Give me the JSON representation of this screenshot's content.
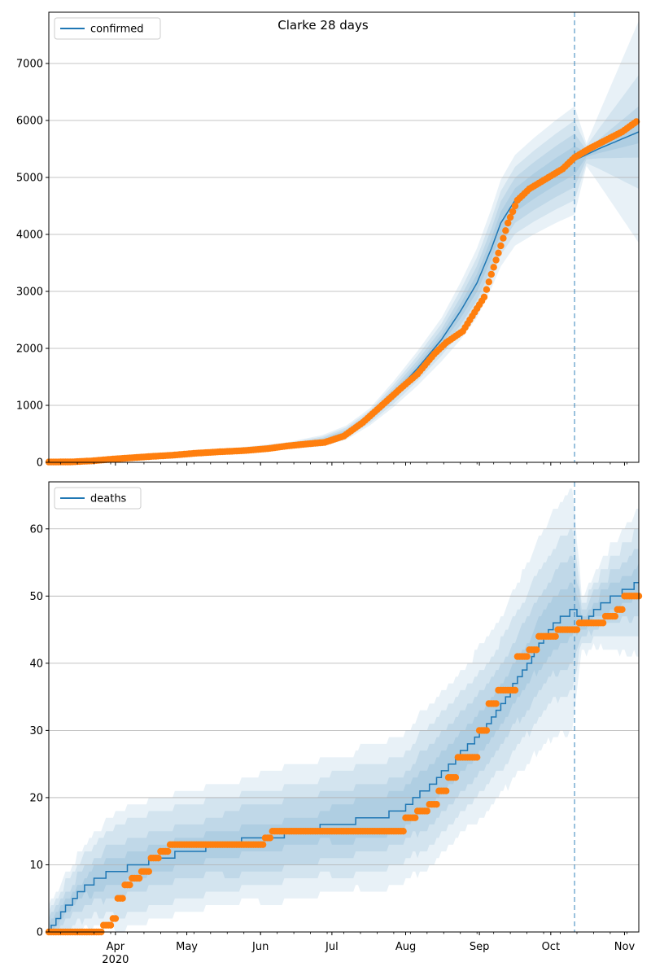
{
  "figure": {
    "title": "Clarke 28 days"
  },
  "chart_data": [
    {
      "type": "line",
      "title": "Clarke 28 days",
      "legend": {
        "label": "confirmed",
        "placement": "top-left"
      },
      "grid": "horizontal",
      "x_domain": [
        "2020-03-04",
        "2020-11-07"
      ],
      "ylim": [
        0,
        7900
      ],
      "yticks": [
        0,
        1000,
        2000,
        3000,
        4000,
        5000,
        6000,
        7000
      ],
      "vline_date": "2020-10-11",
      "colors": {
        "model": "#1f77b4",
        "observed": "#ff7f0e",
        "band": "#1f77b4"
      },
      "model": [
        [
          "2020-03-04",
          20
        ],
        [
          "2020-03-24",
          50
        ],
        [
          "2020-04-13",
          95
        ],
        [
          "2020-05-03",
          150
        ],
        [
          "2020-05-23",
          210
        ],
        [
          "2020-06-12",
          290
        ],
        [
          "2020-06-27",
          380
        ],
        [
          "2020-07-07",
          520
        ],
        [
          "2020-07-17",
          800
        ],
        [
          "2020-07-27",
          1200
        ],
        [
          "2020-08-06",
          1650
        ],
        [
          "2020-08-16",
          2150
        ],
        [
          "2020-08-24",
          2650
        ],
        [
          "2020-08-31",
          3150
        ],
        [
          "2020-09-06",
          3750
        ],
        [
          "2020-09-10",
          4200
        ],
        [
          "2020-09-16",
          4600
        ],
        [
          "2020-09-24",
          4850
        ],
        [
          "2020-10-03",
          5100
        ],
        [
          "2020-10-11",
          5300
        ],
        [
          "2020-10-21",
          5500
        ],
        [
          "2020-11-07",
          5800
        ]
      ],
      "bands": [
        {
          "half_width": [
            [
              "2020-03-04",
              6
            ],
            [
              "2020-06-12",
              15
            ],
            [
              "2020-07-17",
              35
            ],
            [
              "2020-08-16",
              90
            ],
            [
              "2020-09-10",
              200
            ],
            [
              "2020-10-11",
              250
            ],
            [
              "2020-10-16",
              40
            ],
            [
              "2020-11-07",
              200
            ]
          ]
        },
        {
          "half_width": [
            [
              "2020-03-04",
              12
            ],
            [
              "2020-06-12",
              30
            ],
            [
              "2020-07-17",
              70
            ],
            [
              "2020-08-16",
              180
            ],
            [
              "2020-09-10",
              380
            ],
            [
              "2020-10-11",
              470
            ],
            [
              "2020-10-16",
              80
            ],
            [
              "2020-11-07",
              450
            ]
          ]
        },
        {
          "half_width": [
            [
              "2020-03-04",
              18
            ],
            [
              "2020-06-12",
              45
            ],
            [
              "2020-07-17",
              110
            ],
            [
              "2020-08-16",
              280
            ],
            [
              "2020-09-10",
              560
            ],
            [
              "2020-10-11",
              700
            ],
            [
              "2020-10-16",
              150
            ],
            [
              "2020-11-07",
              1000
            ]
          ]
        },
        {
          "half_width": [
            [
              "2020-03-04",
              25
            ],
            [
              "2020-06-12",
              60
            ],
            [
              "2020-07-17",
              150
            ],
            [
              "2020-08-16",
              380
            ],
            [
              "2020-09-10",
              760
            ],
            [
              "2020-10-11",
              950
            ],
            [
              "2020-10-16",
              200
            ],
            [
              "2020-11-07",
              1950
            ]
          ]
        }
      ],
      "observed": [
        [
          "2020-03-04",
          5
        ],
        [
          "2020-03-14",
          8
        ],
        [
          "2020-03-22",
          25
        ],
        [
          "2020-04-01",
          60
        ],
        [
          "2020-04-13",
          95
        ],
        [
          "2020-04-25",
          125
        ],
        [
          "2020-05-05",
          160
        ],
        [
          "2020-05-15",
          185
        ],
        [
          "2020-05-25",
          205
        ],
        [
          "2020-06-04",
          240
        ],
        [
          "2020-06-12",
          285
        ],
        [
          "2020-06-20",
          320
        ],
        [
          "2020-06-28",
          350
        ],
        [
          "2020-07-06",
          460
        ],
        [
          "2020-07-14",
          700
        ],
        [
          "2020-07-22",
          1000
        ],
        [
          "2020-07-30",
          1300
        ],
        [
          "2020-08-06",
          1550
        ],
        [
          "2020-08-13",
          1900
        ],
        [
          "2020-08-18",
          2100
        ],
        [
          "2020-08-25",
          2300
        ],
        [
          "2020-08-31",
          2700
        ],
        [
          "2020-09-03",
          2900
        ],
        [
          "2020-09-06",
          3300
        ],
        [
          "2020-09-10",
          3800
        ],
        [
          "2020-09-13",
          4200
        ],
        [
          "2020-09-17",
          4600
        ],
        [
          "2020-09-22",
          4800
        ],
        [
          "2020-09-30",
          5000
        ],
        [
          "2020-10-06",
          5150
        ],
        [
          "2020-10-11",
          5350
        ],
        [
          "2020-10-17",
          5500
        ],
        [
          "2020-10-24",
          5650
        ],
        [
          "2020-10-31",
          5800
        ],
        [
          "2020-11-06",
          5980
        ]
      ]
    },
    {
      "type": "line",
      "legend": {
        "label": "deaths",
        "placement": "top-left"
      },
      "grid": "horizontal",
      "x_domain": [
        "2020-03-04",
        "2020-11-07"
      ],
      "ylim": [
        0,
        67
      ],
      "yticks": [
        0,
        10,
        20,
        30,
        40,
        50,
        60
      ],
      "vline_date": "2020-10-11",
      "xticks": [
        "Apr\n2020",
        "May",
        "Jun",
        "Jul",
        "Aug",
        "Sep",
        "Oct",
        "Nov"
      ],
      "xtick_dates": [
        "2020-04-01",
        "2020-05-01",
        "2020-06-01",
        "2020-07-01",
        "2020-08-01",
        "2020-09-01",
        "2020-10-01",
        "2020-11-01"
      ],
      "colors": {
        "model": "#1f77b4",
        "observed": "#ff7f0e",
        "band": "#1f77b4"
      },
      "model": [
        [
          "2020-03-04",
          0
        ],
        [
          "2020-03-08",
          2
        ],
        [
          "2020-03-12",
          4
        ],
        [
          "2020-03-17",
          6
        ],
        [
          "2020-03-24",
          8
        ],
        [
          "2020-04-01",
          9
        ],
        [
          "2020-04-10",
          10
        ],
        [
          "2020-04-20",
          11
        ],
        [
          "2020-05-01",
          12
        ],
        [
          "2020-05-16",
          13
        ],
        [
          "2020-06-01",
          14
        ],
        [
          "2020-06-20",
          15
        ],
        [
          "2020-07-01",
          16
        ],
        [
          "2020-07-20",
          17
        ],
        [
          "2020-07-30",
          18
        ],
        [
          "2020-08-05",
          20
        ],
        [
          "2020-08-12",
          22
        ],
        [
          "2020-08-20",
          25
        ],
        [
          "2020-08-28",
          28
        ],
        [
          "2020-09-05",
          31
        ],
        [
          "2020-09-14",
          36
        ],
        [
          "2020-09-23",
          41
        ],
        [
          "2020-10-03",
          46
        ],
        [
          "2020-10-10",
          48
        ],
        [
          "2020-10-15",
          46
        ],
        [
          "2020-10-20",
          48
        ],
        [
          "2020-10-28",
          50
        ],
        [
          "2020-11-07",
          52
        ]
      ],
      "bands": [
        {
          "half_width": [
            [
              "2020-03-04",
              0.8
            ],
            [
              "2020-04-01",
              2
            ],
            [
              "2020-07-01",
              2.5
            ],
            [
              "2020-09-10",
              3
            ],
            [
              "2020-10-10",
              4
            ],
            [
              "2020-10-14",
              1
            ],
            [
              "2020-11-07",
              2.5
            ]
          ]
        },
        {
          "half_width": [
            [
              "2020-03-04",
              1.5
            ],
            [
              "2020-04-01",
              4
            ],
            [
              "2020-07-01",
              5
            ],
            [
              "2020-09-10",
              6
            ],
            [
              "2020-10-10",
              8
            ],
            [
              "2020-10-14",
              2
            ],
            [
              "2020-11-07",
              5
            ]
          ]
        },
        {
          "half_width": [
            [
              "2020-03-04",
              2.5
            ],
            [
              "2020-04-01",
              6.5
            ],
            [
              "2020-07-01",
              7.5
            ],
            [
              "2020-09-10",
              9.5
            ],
            [
              "2020-10-10",
              12
            ],
            [
              "2020-10-14",
              3
            ],
            [
              "2020-11-07",
              8
            ]
          ]
        },
        {
          "half_width": [
            [
              "2020-03-04",
              3.5
            ],
            [
              "2020-04-01",
              8.5
            ],
            [
              "2020-07-01",
              10
            ],
            [
              "2020-09-10",
              13
            ],
            [
              "2020-10-10",
              18
            ],
            [
              "2020-10-14",
              4
            ],
            [
              "2020-11-07",
              11
            ]
          ]
        }
      ],
      "observed": [
        [
          "2020-03-04",
          0
        ],
        [
          "2020-03-27",
          1
        ],
        [
          "2020-03-31",
          2
        ],
        [
          "2020-04-02",
          5
        ],
        [
          "2020-04-05",
          7
        ],
        [
          "2020-04-08",
          8
        ],
        [
          "2020-04-12",
          9
        ],
        [
          "2020-04-16",
          11
        ],
        [
          "2020-04-20",
          12
        ],
        [
          "2020-04-24",
          13
        ],
        [
          "2020-06-01",
          13
        ],
        [
          "2020-06-03",
          14
        ],
        [
          "2020-06-06",
          15
        ],
        [
          "2020-07-28",
          15
        ],
        [
          "2020-08-01",
          17
        ],
        [
          "2020-08-06",
          18
        ],
        [
          "2020-08-11",
          19
        ],
        [
          "2020-08-15",
          21
        ],
        [
          "2020-08-19",
          23
        ],
        [
          "2020-08-23",
          26
        ],
        [
          "2020-08-30",
          26
        ],
        [
          "2020-09-01",
          30
        ],
        [
          "2020-09-05",
          34
        ],
        [
          "2020-09-09",
          36
        ],
        [
          "2020-09-13",
          36
        ],
        [
          "2020-09-17",
          41
        ],
        [
          "2020-09-22",
          42
        ],
        [
          "2020-09-26",
          44
        ],
        [
          "2020-10-01",
          44
        ],
        [
          "2020-10-04",
          45
        ],
        [
          "2020-10-11",
          45
        ],
        [
          "2020-10-13",
          46
        ],
        [
          "2020-10-21",
          46
        ],
        [
          "2020-10-24",
          47
        ],
        [
          "2020-10-29",
          48
        ],
        [
          "2020-11-01",
          50
        ],
        [
          "2020-11-07",
          50
        ]
      ]
    }
  ]
}
